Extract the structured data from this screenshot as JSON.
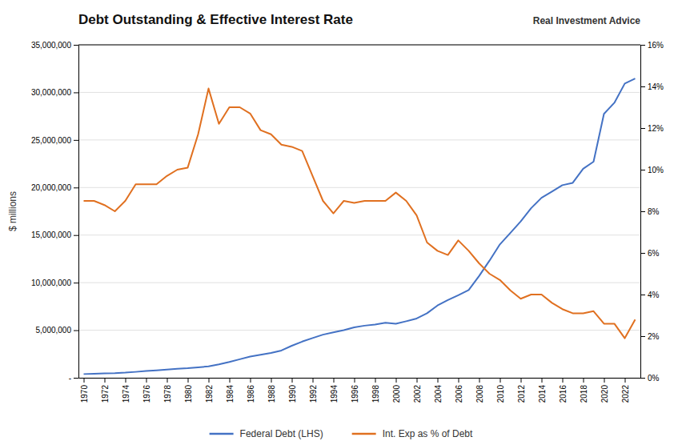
{
  "chart_data": {
    "type": "line",
    "title": "Debt Outstanding & Effective Interest Rate",
    "annotations": [
      "Real Investment Advice"
    ],
    "ylabel": "$ millions",
    "x": [
      1970,
      1971,
      1972,
      1973,
      1974,
      1975,
      1976,
      1977,
      1978,
      1979,
      1980,
      1981,
      1982,
      1983,
      1984,
      1985,
      1986,
      1987,
      1988,
      1989,
      1990,
      1991,
      1992,
      1993,
      1994,
      1995,
      1996,
      1997,
      1998,
      1999,
      2000,
      2001,
      2002,
      2003,
      2004,
      2005,
      2006,
      2007,
      2008,
      2009,
      2010,
      2011,
      2012,
      2013,
      2014,
      2015,
      2016,
      2017,
      2018,
      2019,
      2020,
      2021,
      2022,
      2023
    ],
    "series": [
      {
        "name": "Federal Debt (LHS)",
        "color": "#4472C4",
        "values": [
          389158,
          424130,
          466291,
          491001,
          540093,
          620433,
          709132,
          780425,
          857399,
          940882,
          1003464,
          1097791,
          1197073,
          1410702,
          1662132,
          1945941,
          2226307,
          2425614,
          2600760,
          2867500,
          3364820,
          3801698,
          4177009,
          4534679,
          4773442,
          5006147,
          5295942,
          5478882,
          5600612,
          5776087,
          5674178,
          5943438,
          6228236,
          6783231,
          7596098,
          8170424,
          8680224,
          9229172,
          10699805,
          12311349,
          14025215,
          15222940,
          16432730,
          17824071,
          18922179,
          19573444,
          20244900,
          20493401,
          21974490,
          22719401,
          27748079,
          28908004,
          30928911,
          31459784
        ]
      },
      {
        "name": "Int. Exp as % of Debt",
        "color": "#E07020",
        "axis": "y2",
        "values": [
          8.5,
          8.5,
          8.3,
          8.0,
          8.5,
          9.3,
          9.3,
          9.3,
          9.7,
          10.0,
          10.1,
          11.7,
          13.9,
          12.2,
          13.0,
          13.0,
          12.7,
          11.9,
          11.7,
          11.2,
          11.1,
          10.9,
          9.7,
          8.5,
          7.9,
          8.5,
          8.4,
          8.5,
          8.5,
          8.5,
          8.9,
          8.5,
          7.8,
          6.5,
          6.1,
          5.9,
          6.6,
          6.1,
          5.5,
          5.0,
          4.7,
          4.2,
          3.8,
          4.0,
          4.0,
          3.6,
          3.3,
          3.1,
          3.1,
          3.2,
          2.6,
          2.6,
          1.9,
          2.8
        ]
      }
    ],
    "xlim": [
      1969.5,
      2023.5
    ],
    "xticks": [
      1970,
      1972,
      1974,
      1976,
      1978,
      1980,
      1982,
      1984,
      1986,
      1988,
      1990,
      1992,
      1994,
      1996,
      1998,
      2000,
      2002,
      2004,
      2006,
      2008,
      2010,
      2012,
      2014,
      2016,
      2018,
      2020,
      2022
    ],
    "ylim": [
      0,
      35000000
    ],
    "yticks": [
      {
        "value": 0,
        "label": "-"
      },
      {
        "value": 5000000,
        "label": "5,000,000"
      },
      {
        "value": 10000000,
        "label": "10,000,000"
      },
      {
        "value": 15000000,
        "label": "15,000,000"
      },
      {
        "value": 20000000,
        "label": "20,000,000"
      },
      {
        "value": 25000000,
        "label": "25,000,000"
      },
      {
        "value": 30000000,
        "label": "30,000,000"
      },
      {
        "value": 35000000,
        "label": "35,000,000"
      }
    ],
    "y2lim": [
      0,
      16
    ],
    "y2ticks": [
      {
        "value": 0,
        "label": "0%"
      },
      {
        "value": 2,
        "label": "2%"
      },
      {
        "value": 4,
        "label": "4%"
      },
      {
        "value": 6,
        "label": "6%"
      },
      {
        "value": 8,
        "label": "8%"
      },
      {
        "value": 10,
        "label": "10%"
      },
      {
        "value": 12,
        "label": "12%"
      },
      {
        "value": 14,
        "label": "14%"
      },
      {
        "value": 16,
        "label": "16%"
      }
    ],
    "grid": true,
    "legend": "bottom"
  }
}
